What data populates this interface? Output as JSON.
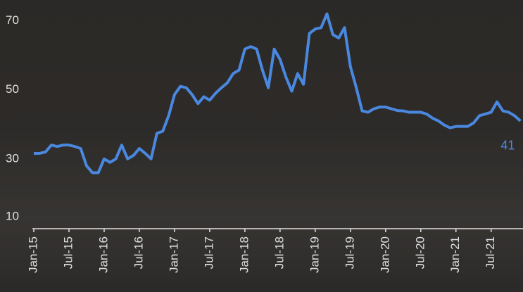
{
  "chart_data": {
    "type": "line",
    "categories": [
      "Jan-15",
      null,
      null,
      null,
      null,
      null,
      "Jul-15",
      null,
      null,
      null,
      null,
      null,
      "Jan-16",
      null,
      null,
      null,
      null,
      null,
      "Jul-16",
      null,
      null,
      null,
      null,
      null,
      "Jan-17",
      null,
      null,
      null,
      null,
      null,
      "Jul-17",
      null,
      null,
      null,
      null,
      null,
      "Jan-18",
      null,
      null,
      null,
      null,
      null,
      "Jul-18",
      null,
      null,
      null,
      null,
      null,
      "Jan-19",
      null,
      null,
      null,
      null,
      null,
      "Jul-19",
      null,
      null,
      null,
      null,
      null,
      "Jan-20",
      null,
      null,
      null,
      null,
      null,
      "Jul-20",
      null,
      null,
      null,
      null,
      null,
      "Jan-21",
      null,
      null,
      null,
      null,
      null,
      "Jul-21",
      null,
      null,
      null,
      null,
      null
    ],
    "series": [
      {
        "color": "#4a88e0",
        "values": [
          31.6,
          31.6,
          32,
          34,
          33.6,
          34,
          34,
          33.6,
          33,
          28,
          26,
          26,
          30,
          29,
          30,
          34,
          30,
          31,
          33,
          31.6,
          30,
          37.4,
          38,
          42.5,
          48.6,
          51,
          50.6,
          48.6,
          46,
          48,
          47,
          49,
          50.6,
          52,
          54.7,
          55.7,
          61.8,
          62.5,
          61.8,
          55.7,
          50.6,
          61.8,
          58.8,
          53.7,
          49.6,
          54.7,
          51.6,
          66.3,
          67.6,
          68,
          72,
          66,
          65,
          68,
          56.7,
          50.6,
          43.9,
          43.5,
          44.5,
          45,
          45,
          44.5,
          44,
          43.9,
          43.5,
          43.5,
          43.5,
          43,
          41.8,
          41,
          39.8,
          39,
          39.4,
          39.4,
          39.4,
          40.4,
          42.5,
          43,
          43.5,
          46.5,
          43.9,
          43.5,
          42.5,
          41
        ]
      }
    ],
    "ylim": [
      10,
      76
    ],
    "yticks": [
      10,
      30,
      50,
      70
    ]
  }
}
